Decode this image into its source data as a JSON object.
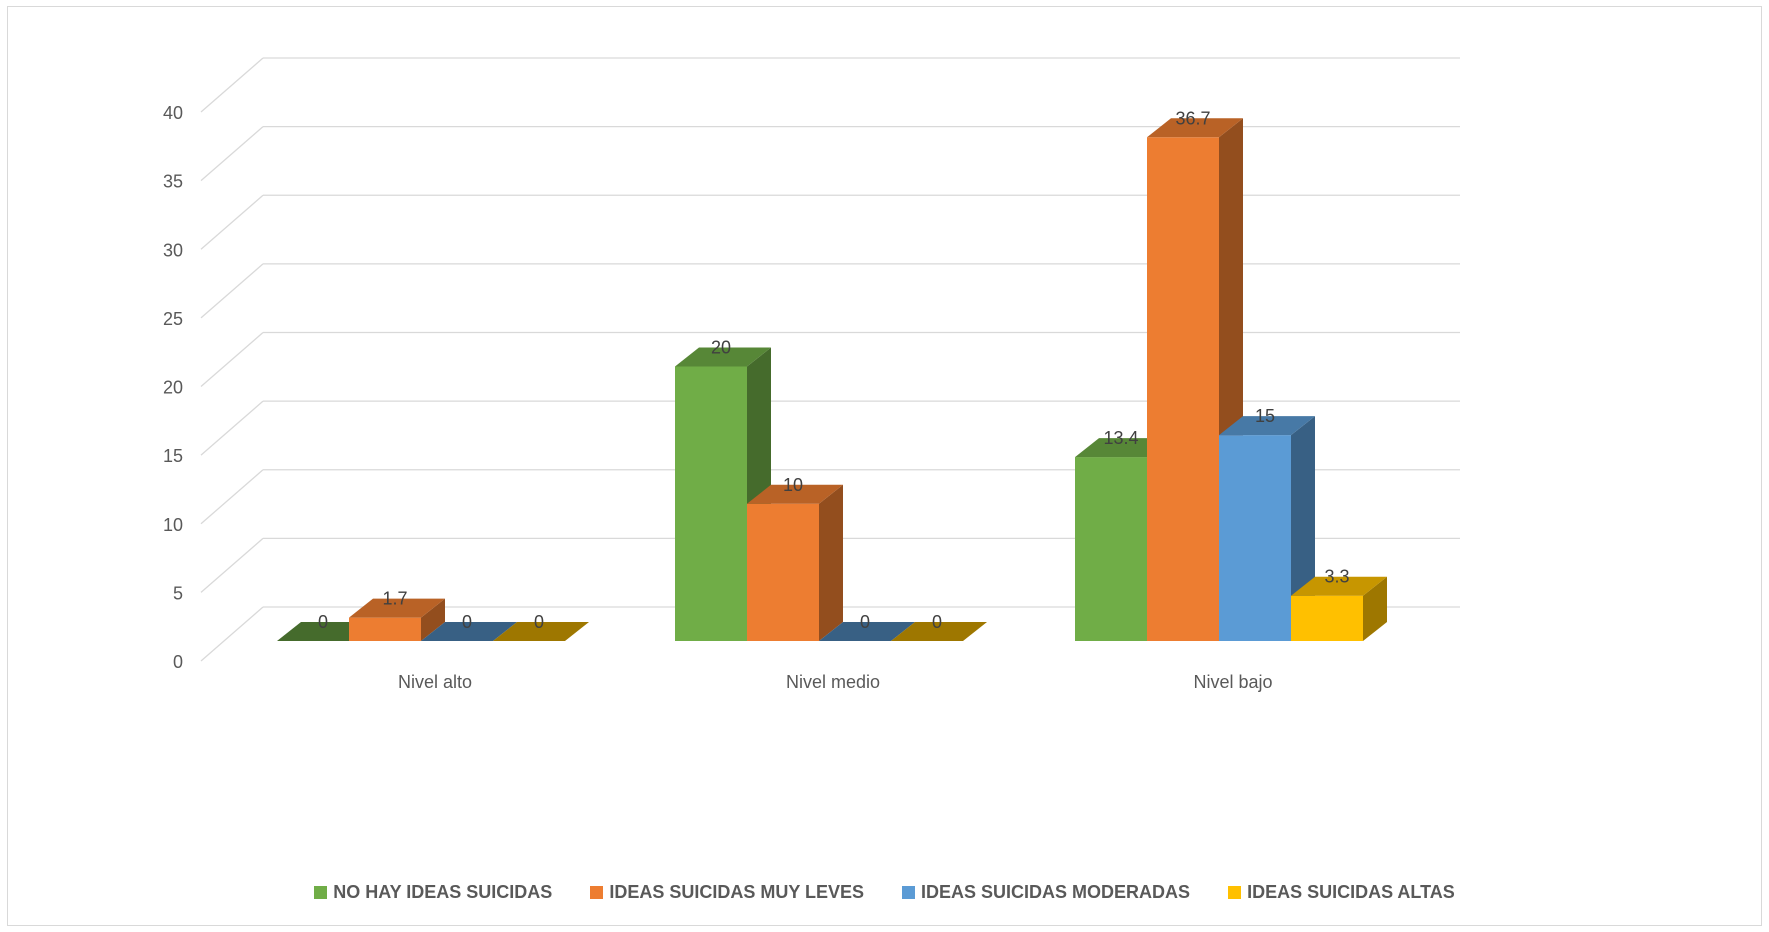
{
  "chart_data": {
    "type": "bar",
    "title": "",
    "xlabel": "",
    "ylabel": "",
    "ylim": [
      0,
      40
    ],
    "yticks": [
      0,
      5,
      10,
      15,
      20,
      25,
      30,
      35,
      40
    ],
    "grid": true,
    "three_d": true,
    "legend_position": "bottom",
    "categories": [
      "Nivel alto",
      "Nivel medio",
      "Nivel bajo"
    ],
    "series": [
      {
        "name": "NO HAY IDEAS SUICIDAS",
        "color": "#70AD47",
        "values": [
          0,
          20,
          13.4
        ]
      },
      {
        "name": "IDEAS SUICIDAS MUY LEVES",
        "color": "#ED7D31",
        "values": [
          1.7,
          10,
          36.7
        ]
      },
      {
        "name": "IDEAS SUICIDAS MODERADAS",
        "color": "#5B9BD5",
        "values": [
          0,
          0,
          15
        ]
      },
      {
        "name": "IDEAS SUICIDAS ALTAS",
        "color": "#FFC000",
        "values": [
          0,
          0,
          3.3
        ]
      }
    ]
  }
}
